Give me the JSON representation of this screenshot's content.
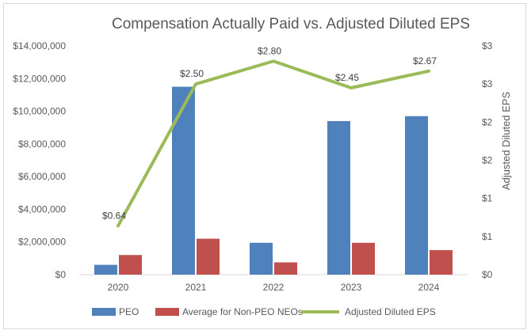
{
  "chart_data": {
    "type": "bar",
    "title": "Compensation Actually Paid vs. Adjusted Diluted EPS",
    "categories": [
      "2020",
      "2021",
      "2022",
      "2023",
      "2024"
    ],
    "series": [
      {
        "name": "PEO",
        "type": "bar",
        "axis": "left",
        "color": "#4f81bd",
        "values": [
          600000,
          11500000,
          1950000,
          9400000,
          9700000
        ]
      },
      {
        "name": "Average for Non-PEO NEOs",
        "type": "bar",
        "axis": "left",
        "color": "#c0504d",
        "values": [
          1200000,
          2200000,
          750000,
          1950000,
          1500000
        ]
      },
      {
        "name": "Adjusted Diluted EPS",
        "type": "line",
        "axis": "right",
        "color": "#9bbb59",
        "values": [
          0.64,
          2.5,
          2.8,
          2.45,
          2.67
        ],
        "labels": [
          "$0.64",
          "$2.50",
          "$2.80",
          "$2.45",
          "$2.67"
        ]
      }
    ],
    "y_left": {
      "label": "",
      "ylim": [
        0,
        14000000
      ],
      "ticks": [
        "$0",
        "$2,000,000",
        "$4,000,000",
        "$6,000,000",
        "$8,000,000",
        "$10,000,000",
        "$12,000,000",
        "$14,000,000"
      ]
    },
    "y_right": {
      "label": "Adjusted Diluted EPS",
      "ylim": [
        0,
        3
      ],
      "ticks": [
        "$0",
        "$1",
        "$1",
        "$2",
        "$2",
        "$3",
        "$3"
      ]
    },
    "grid": false,
    "legend_position": "bottom"
  }
}
